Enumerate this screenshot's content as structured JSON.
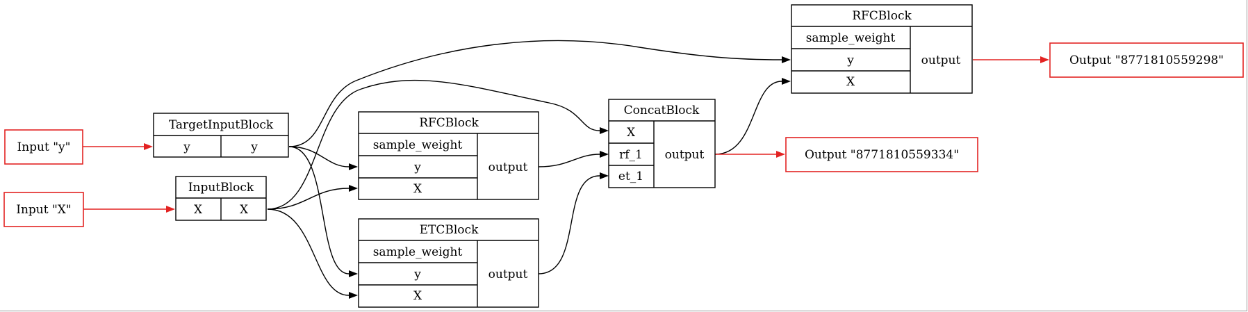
{
  "inputs": {
    "y": "Input \"y\"",
    "X": "Input \"X\""
  },
  "outputs": {
    "top": "Output \"8771810559298\"",
    "mid": "Output \"8771810559334\""
  },
  "blocks": {
    "target_input": {
      "title": "TargetInputBlock",
      "left": "y",
      "right": "y"
    },
    "input": {
      "title": "InputBlock",
      "left": "X",
      "right": "X"
    },
    "rfc_mid": {
      "title": "RFCBlock",
      "ports": [
        "sample_weight",
        "y",
        "X"
      ],
      "output": "output"
    },
    "etc": {
      "title": "ETCBlock",
      "ports": [
        "sample_weight",
        "y",
        "X"
      ],
      "output": "output"
    },
    "concat": {
      "title": "ConcatBlock",
      "ports": [
        "X",
        "rf_1",
        "et_1"
      ],
      "output": "output"
    },
    "rfc_top": {
      "title": "RFCBlock",
      "ports": [
        "sample_weight",
        "y",
        "X"
      ],
      "output": "output"
    }
  },
  "colors": {
    "io_border": "#e32322",
    "edge": "#000000"
  }
}
